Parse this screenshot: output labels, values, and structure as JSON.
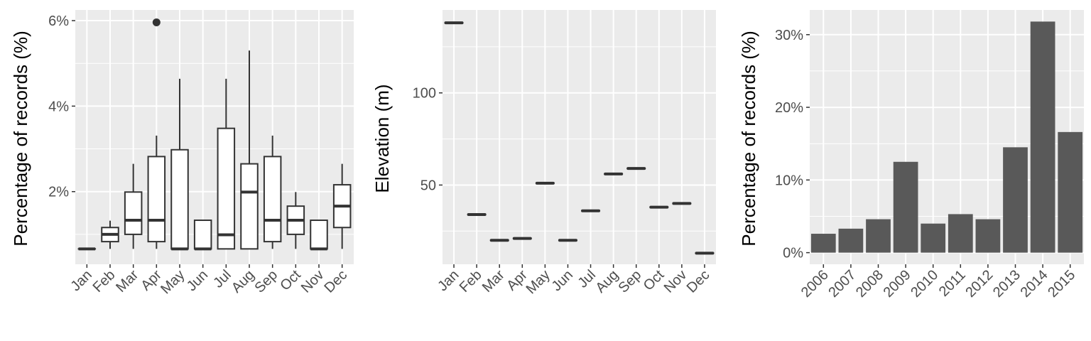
{
  "chart_data": [
    {
      "type": "box",
      "title": "",
      "xlabel": "",
      "ylabel": "Percentage of records (%)",
      "categories": [
        "Jan",
        "Feb",
        "Mar",
        "Apr",
        "May",
        "Jun",
        "Jul",
        "Aug",
        "Sep",
        "Oct",
        "Nov",
        "Dec"
      ],
      "y_ticks": [
        {
          "value": 2,
          "label": "2%"
        },
        {
          "value": 4,
          "label": "4%"
        },
        {
          "value": 6,
          "label": "6%"
        }
      ],
      "ylim": [
        0.3,
        6.25
      ],
      "boxes": [
        {
          "low": 0.66,
          "q1": 0.66,
          "median": 0.66,
          "q3": 0.66,
          "high": 0.66
        },
        {
          "low": 0.66,
          "q1": 0.83,
          "median": 1.0,
          "q3": 1.16,
          "high": 1.32
        },
        {
          "low": 0.66,
          "q1": 1.0,
          "median": 1.33,
          "q3": 1.99,
          "high": 2.65
        },
        {
          "low": 0.66,
          "q1": 0.83,
          "median": 1.33,
          "q3": 2.82,
          "high": 3.31
        },
        {
          "low": 0.66,
          "q1": 0.66,
          "median": 0.66,
          "q3": 2.98,
          "high": 4.64
        },
        {
          "low": 0.66,
          "q1": 0.66,
          "median": 0.66,
          "q3": 1.33,
          "high": 1.33
        },
        {
          "low": 0.66,
          "q1": 0.66,
          "median": 0.99,
          "q3": 3.48,
          "high": 4.64
        },
        {
          "low": 0.66,
          "q1": 0.66,
          "median": 1.99,
          "q3": 2.65,
          "high": 5.3
        },
        {
          "low": 0.66,
          "q1": 0.83,
          "median": 1.33,
          "q3": 2.82,
          "high": 3.31
        },
        {
          "low": 0.66,
          "q1": 1.0,
          "median": 1.33,
          "q3": 1.66,
          "high": 1.99
        },
        {
          "low": 0.66,
          "q1": 0.66,
          "median": 0.66,
          "q3": 1.33,
          "high": 1.33
        },
        {
          "low": 0.66,
          "q1": 1.16,
          "median": 1.66,
          "q3": 2.16,
          "high": 2.65
        }
      ],
      "outliers": [
        {
          "category": "Apr",
          "value": 5.96
        }
      ],
      "grid": true,
      "background": "#ebebeb"
    },
    {
      "type": "box",
      "title": "",
      "xlabel": "",
      "ylabel": "Elevation (m)",
      "categories": [
        "Jan",
        "Feb",
        "Mar",
        "Apr",
        "May",
        "Jun",
        "Jul",
        "Aug",
        "Sep",
        "Oct",
        "Nov",
        "Dec"
      ],
      "values": [
        138,
        34,
        20,
        21,
        51,
        20,
        36,
        56,
        59,
        38,
        40,
        13
      ],
      "y_ticks": [
        {
          "value": 50,
          "label": "50"
        },
        {
          "value": 100,
          "label": "100"
        }
      ],
      "ylim": [
        7,
        145
      ],
      "grid": true,
      "background": "#ebebeb"
    },
    {
      "type": "bar",
      "title": "",
      "xlabel": "",
      "ylabel": "Percentage of records (%)",
      "categories": [
        "2006",
        "2007",
        "2008",
        "2009",
        "2010",
        "2011",
        "2012",
        "2013",
        "2014",
        "2015"
      ],
      "values": [
        2.6,
        3.3,
        4.6,
        12.5,
        4.0,
        5.3,
        4.6,
        14.5,
        31.8,
        16.6
      ],
      "y_ticks": [
        {
          "value": 0,
          "label": "0%"
        },
        {
          "value": 10,
          "label": "10%"
        },
        {
          "value": 20,
          "label": "20%"
        },
        {
          "value": 30,
          "label": "30%"
        }
      ],
      "ylim": [
        -1.6,
        33.4
      ],
      "bar_color": "#595959",
      "grid": true,
      "background": "#ebebeb"
    }
  ]
}
